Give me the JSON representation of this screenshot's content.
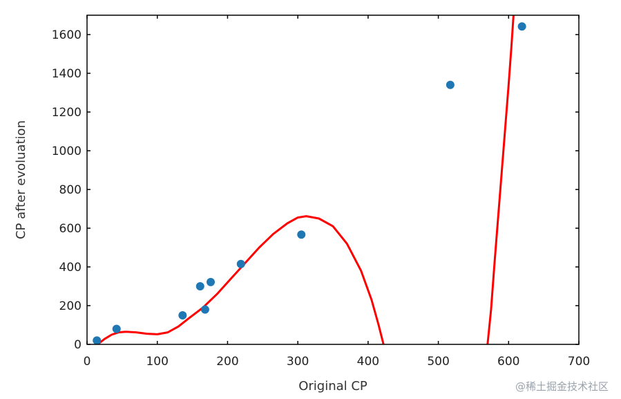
{
  "chart_data": {
    "type": "scatter",
    "xlabel": "Original CP",
    "ylabel": "CP after evoluation",
    "xlim": [
      0,
      700
    ],
    "ylim": [
      0,
      1700
    ],
    "xticks": [
      0,
      100,
      200,
      300,
      400,
      500,
      600,
      700
    ],
    "yticks": [
      0,
      200,
      400,
      600,
      800,
      1000,
      1200,
      1400,
      1600
    ],
    "grid": false,
    "series": [
      {
        "type": "scatter",
        "color": "#1f77b4",
        "points": [
          [
            14,
            20
          ],
          [
            42,
            80
          ],
          [
            136,
            150
          ],
          [
            161,
            300
          ],
          [
            168,
            180
          ],
          [
            176,
            322
          ],
          [
            219,
            415
          ],
          [
            305,
            567
          ],
          [
            517,
            1340
          ],
          [
            619,
            1642
          ]
        ]
      },
      {
        "type": "line",
        "color": "#ff0000",
        "segments": [
          [
            [
              15,
              0
            ],
            [
              25,
              28
            ],
            [
              35,
              50
            ],
            [
              45,
              62
            ],
            [
              55,
              65
            ],
            [
              70,
              62
            ],
            [
              85,
              55
            ],
            [
              100,
              52
            ],
            [
              115,
              62
            ],
            [
              130,
              92
            ],
            [
              145,
              135
            ],
            [
              165,
              190
            ],
            [
              185,
              260
            ],
            [
              205,
              340
            ],
            [
              225,
              420
            ],
            [
              245,
              500
            ],
            [
              265,
              570
            ],
            [
              285,
              625
            ],
            [
              300,
              655
            ],
            [
              312,
              662
            ],
            [
              330,
              650
            ],
            [
              350,
              610
            ],
            [
              370,
              520
            ],
            [
              390,
              380
            ],
            [
              405,
              230
            ],
            [
              415,
              100
            ],
            [
              422,
              0
            ]
          ],
          [
            [
              570,
              0
            ],
            [
              575,
              180
            ],
            [
              580,
              420
            ],
            [
              585,
              650
            ],
            [
              590,
              880
            ],
            [
              595,
              1110
            ],
            [
              600,
              1340
            ],
            [
              604,
              1540
            ],
            [
              607,
              1700
            ]
          ]
        ]
      }
    ]
  },
  "watermark": "@稀土掘金技术社区"
}
